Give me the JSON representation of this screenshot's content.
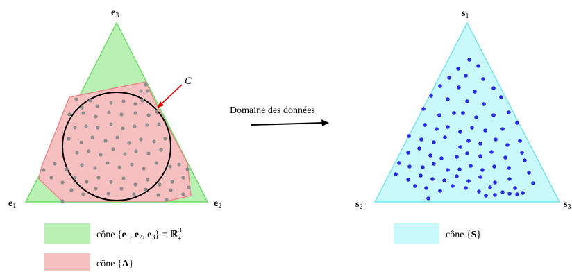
{
  "left_panel": {
    "vertex_labels": {
      "top": "e",
      "top_sub": "3",
      "left": "e",
      "left_sub": "1",
      "right": "e",
      "right_sub": "2"
    },
    "circle_label": "C",
    "colors": {
      "simplex_fill": "#b9f0b4",
      "simplex_stroke": "#6ddc6a",
      "polytope_fill": "#f7c0c0",
      "polytope_stroke": "#e88a8a",
      "circle_stroke": "#000000",
      "point_color": "#8c8c8c",
      "arrow_color": "#e00000"
    }
  },
  "middle": {
    "caption": "Domaine des données"
  },
  "right_panel": {
    "vertex_labels": {
      "top": "s",
      "top_sub": "1",
      "left": "s",
      "left_sub": "2",
      "right": "s",
      "right_sub": "3"
    },
    "colors": {
      "simplex_fill": "#c9f9fb",
      "simplex_stroke": "#77e3ec",
      "point_color": "#2a2ae0"
    }
  },
  "legend": {
    "item1": {
      "prefix": "cône {",
      "e": "e",
      "s1": "1",
      "s2": "2",
      "s3": "3",
      "equals": "} = ",
      "R": "ℝ",
      "sup": "3",
      "sub": "+"
    },
    "item2": {
      "prefix": "cône {",
      "A": "A",
      "suffix": "}"
    },
    "item3": {
      "prefix": "cône {",
      "S": "S",
      "suffix": "}"
    }
  }
}
